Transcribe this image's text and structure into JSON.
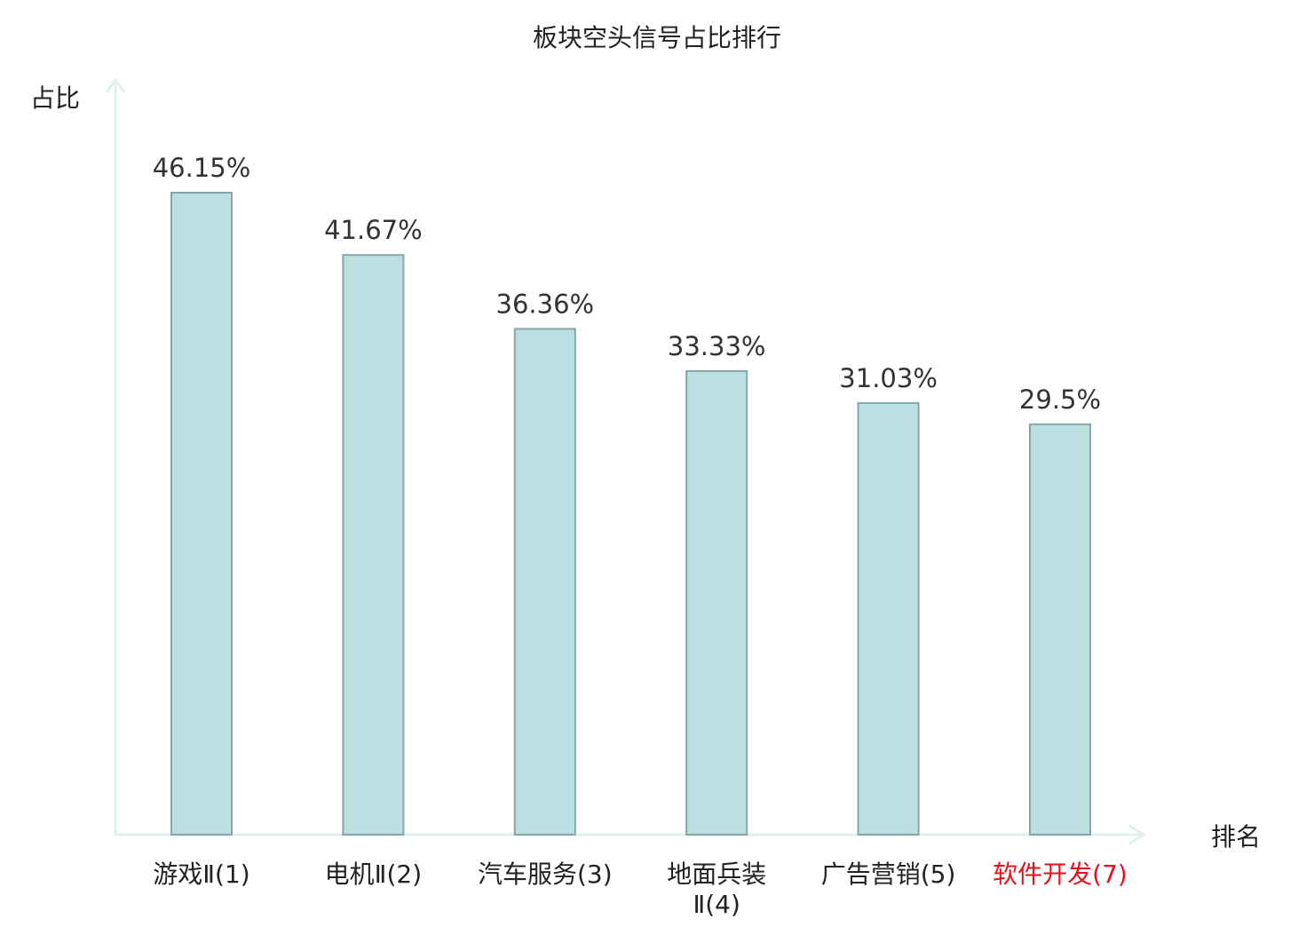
{
  "chart_data": {
    "type": "bar",
    "title": "板块空头信号占比排行",
    "ylabel": "占比",
    "xlabel": "排名",
    "ylim": [
      0,
      54
    ],
    "grid": false,
    "categories": [
      [
        "游戏Ⅱ(1)"
      ],
      [
        "电机Ⅱ(2)"
      ],
      [
        "汽车服务(3)"
      ],
      [
        "地面兵装",
        "Ⅱ(4)"
      ],
      [
        "广告营销(5)"
      ],
      [
        "软件开发(7)"
      ]
    ],
    "values": [
      46.15,
      41.67,
      36.36,
      33.33,
      31.03,
      29.5
    ],
    "value_labels": [
      "46.15%",
      "41.67%",
      "36.36%",
      "33.33%",
      "31.03%",
      "29.5%"
    ],
    "highlight_index": 5
  },
  "colors": {
    "bar_fill": "#bce0e2",
    "bar_stroke": "#86a6a9",
    "axis": "#dff0ee",
    "text": "#222222",
    "value_text": "#333333",
    "highlight": "#e8101a"
  }
}
